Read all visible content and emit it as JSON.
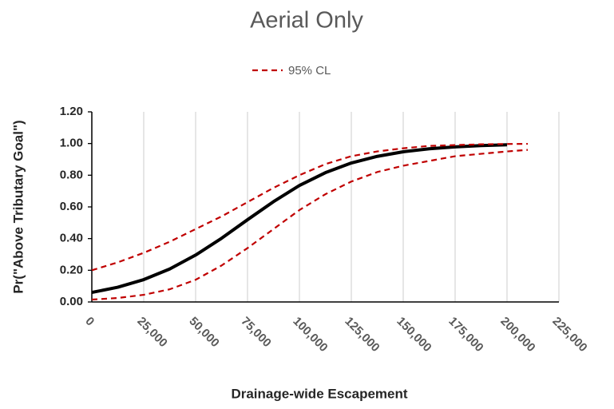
{
  "chart_data": {
    "type": "line",
    "title": "Aerial Only",
    "x_label": "Drainage-wide Escapement",
    "y_label": "Pr(\"Above Tributary Goal\")",
    "x": [
      0,
      12500,
      25000,
      37500,
      50000,
      62500,
      75000,
      87500,
      100000,
      112500,
      125000,
      137500,
      150000,
      162500,
      175000,
      187500,
      200000,
      210000
    ],
    "series": [
      {
        "color": "#000000",
        "values": [
          0.06,
          0.093,
          0.141,
          0.208,
          0.296,
          0.402,
          0.519,
          0.633,
          0.735,
          0.816,
          0.877,
          0.919,
          0.948,
          0.967,
          0.979,
          0.987,
          0.992,
          null
        ]
      },
      {
        "name": "95% CL",
        "color": "#c00000",
        "dashed": true,
        "values": [
          0.2,
          0.25,
          0.31,
          0.38,
          0.46,
          0.54,
          0.63,
          0.72,
          0.8,
          0.87,
          0.92,
          0.95,
          0.97,
          0.985,
          0.99,
          0.995,
          0.997,
          0.998
        ]
      },
      {
        "color": "#c00000",
        "dashed": true,
        "values": [
          0.015,
          0.025,
          0.045,
          0.08,
          0.14,
          0.23,
          0.34,
          0.46,
          0.58,
          0.68,
          0.76,
          0.82,
          0.86,
          0.89,
          0.92,
          0.935,
          0.95,
          0.96
        ]
      }
    ],
    "xlim": [
      0,
      225000
    ],
    "xticks": [
      0,
      {
        "value": 25000,
        "label": "25,000"
      },
      {
        "value": 50000,
        "label": "50,000"
      },
      {
        "value": 75000,
        "label": "75,000"
      },
      {
        "value": 100000,
        "label": "100,000"
      },
      {
        "value": 125000,
        "label": "125,000"
      },
      {
        "value": 150000,
        "label": "150,000"
      },
      {
        "value": 175000,
        "label": "175,000"
      },
      {
        "value": 200000,
        "label": "200,000"
      },
      {
        "value": 225000,
        "label": "225,000"
      }
    ],
    "ylim": [
      0,
      1.2
    ],
    "yticks": [
      {
        "value": 0,
        "label": "0.00"
      },
      {
        "value": 0.2,
        "label": "0.20"
      },
      {
        "value": 0.4,
        "label": "0.40"
      },
      {
        "value": 0.6,
        "label": "0.60"
      },
      {
        "value": 0.8,
        "label": "0.80"
      },
      {
        "value": 1.0,
        "label": "1.00"
      },
      {
        "value": 1.2,
        "label": "1.20"
      }
    ],
    "xgrid": true,
    "legend": "top"
  }
}
